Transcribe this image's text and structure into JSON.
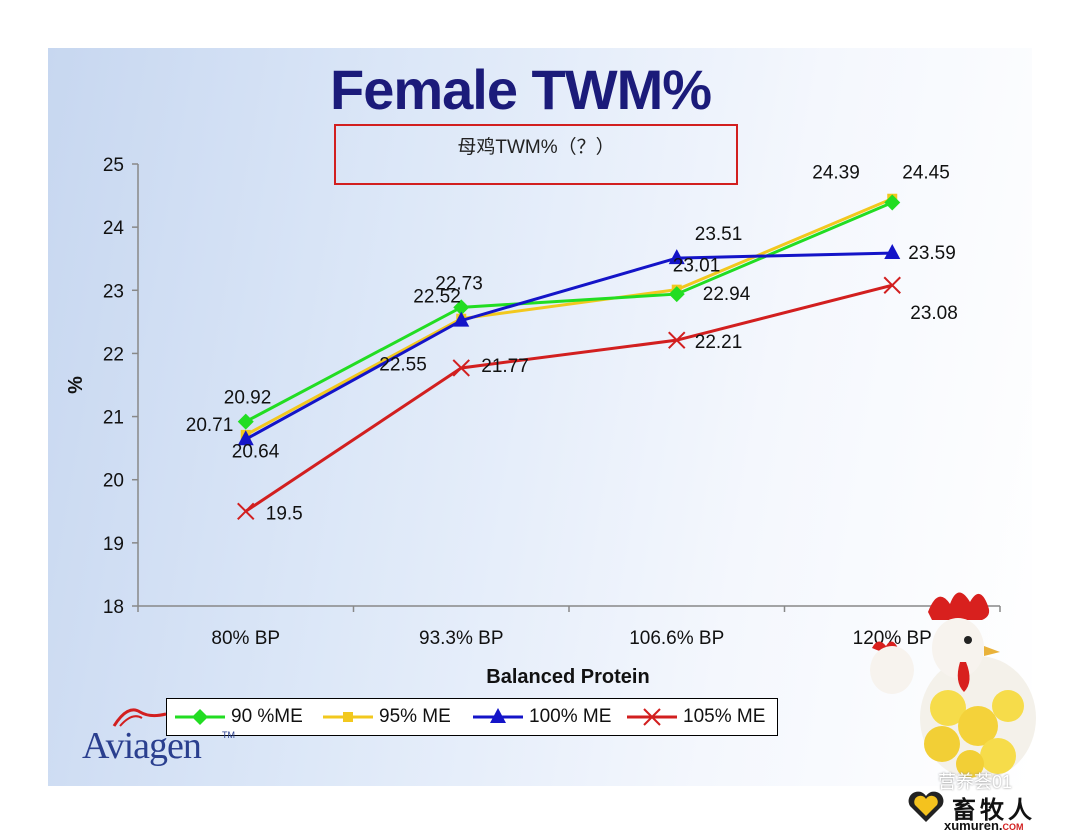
{
  "slide": {
    "title": "Female TWM%",
    "subtitle": "母鸡TWM%（？）",
    "logo_text": "Aviagen",
    "logo_tm": "TM",
    "brand_cn": "畜牧人",
    "brand_url_main": "xumuren.",
    "brand_url_com": "COM",
    "wechat_watermark": "营养荟01"
  },
  "chart_data": {
    "type": "line",
    "title": "Female TWM%",
    "xlabel": "Balanced Protein",
    "ylabel": "%",
    "categories": [
      "80% BP",
      "93.3% BP",
      "106.6% BP",
      "120% BP"
    ],
    "ylim": [
      18,
      25
    ],
    "yticks": [
      18,
      19,
      20,
      21,
      22,
      23,
      24,
      25
    ],
    "grid": false,
    "legend_position": "bottom",
    "series": [
      {
        "name": "90 %ME",
        "color": "#22dd22",
        "marker": "diamond",
        "values": [
          20.92,
          22.73,
          22.94,
          24.39
        ],
        "labels": [
          "20.92",
          "22.73",
          "22.94",
          "24.39"
        ]
      },
      {
        "name": "95% ME",
        "color": "#f2c81e",
        "marker": "square",
        "values": [
          20.71,
          22.55,
          23.01,
          24.45
        ],
        "labels": [
          "20.71",
          "22.55",
          "23.01",
          "24.45"
        ]
      },
      {
        "name": "100% ME",
        "color": "#1414c8",
        "marker": "triangle",
        "values": [
          20.64,
          22.52,
          23.51,
          23.59
        ],
        "labels": [
          "20.64",
          "22.52",
          "23.51",
          "23.59"
        ]
      },
      {
        "name": "105% ME",
        "color": "#d21f1f",
        "marker": "x",
        "values": [
          19.5,
          21.77,
          22.21,
          23.08
        ],
        "labels": [
          "19.5",
          "21.77",
          "22.21",
          "23.08"
        ]
      }
    ]
  }
}
